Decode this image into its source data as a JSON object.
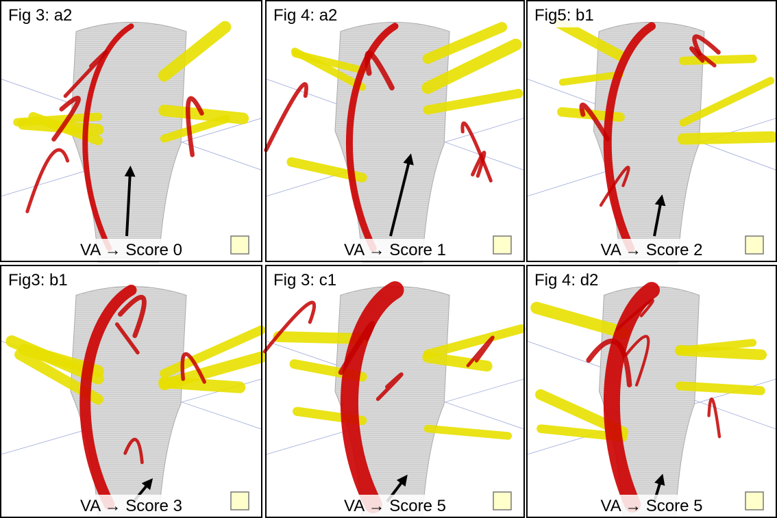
{
  "panels": [
    {
      "label": "Fig 3: a2",
      "caption": "VA → Score 0"
    },
    {
      "label": "Fig 4: a2",
      "caption": "VA → Score 1"
    },
    {
      "label": "Fig5: b1",
      "caption": "VA → Score 2"
    },
    {
      "label": "Fig3: b1",
      "caption": "VA → Score 3"
    },
    {
      "label": "Fig 3: c1",
      "caption": "VA → Score 5"
    },
    {
      "label": "Fig 4: d2",
      "caption": "VA → Score 5"
    }
  ]
}
